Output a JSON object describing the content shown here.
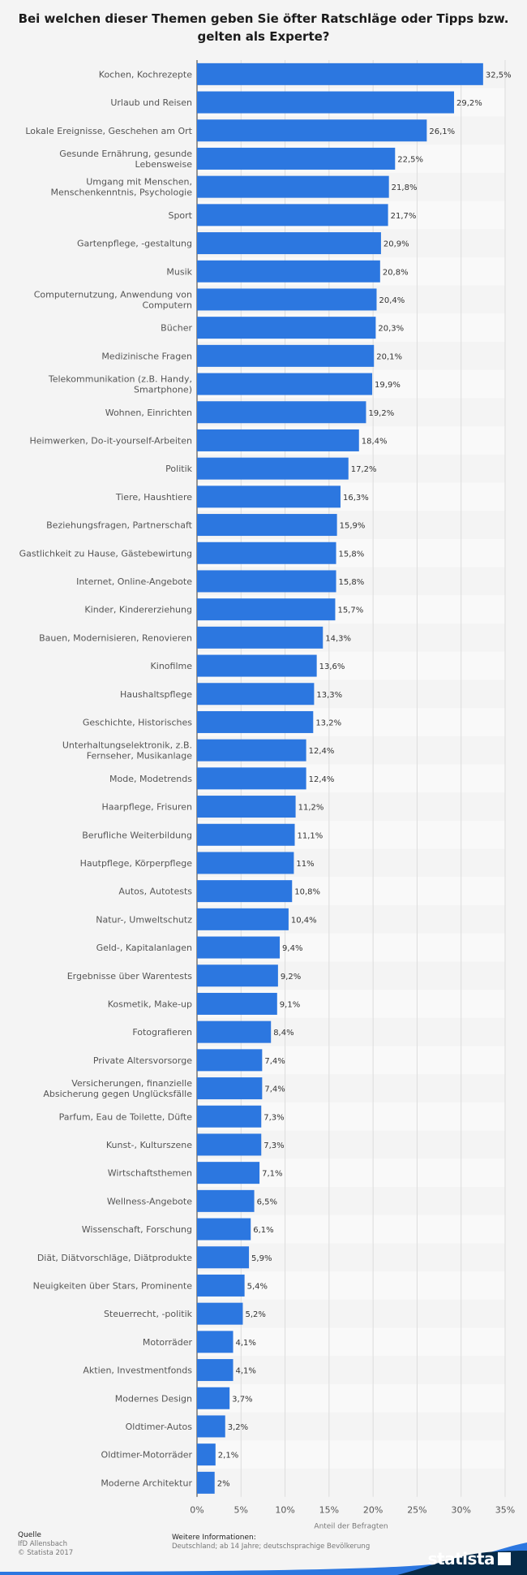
{
  "title": "Bei welchen dieser Themen geben Sie öfter Ratschläge oder Tipps bzw. gelten als Experte?",
  "footer": {
    "source_heading": "Quelle",
    "source_lines": [
      "IfD Allensbach",
      "© Statista 2017"
    ],
    "info_heading": "Weitere Informationen:",
    "info_text": "Deutschland; ab 14 Jahre; deutschsprachige Bevölkerung"
  },
  "brand": "statista",
  "colors": {
    "bar": "#2c77e0",
    "background": "#f4f4f4",
    "stripe": "#f9f9f9",
    "brand_dark": "#062a48",
    "brand_accent": "#2c77e0"
  },
  "chart_data": {
    "type": "bar",
    "orientation": "horizontal",
    "xlabel": "Anteil der Befragten",
    "ylabel": "",
    "xlim": [
      0,
      35
    ],
    "x_ticks": [
      "0%",
      "5%",
      "10%",
      "15%",
      "20%",
      "25%",
      "30%",
      "35%"
    ],
    "x_tick_values": [
      0,
      5,
      10,
      15,
      20,
      25,
      30,
      35
    ],
    "grid": true,
    "categories": [
      "Kochen, Kochrezepte",
      "Urlaub und Reisen",
      "Lokale Ereignisse, Geschehen am Ort",
      "Gesunde Ernährung, gesunde Lebensweise",
      "Umgang mit Menschen, Menschenkenntnis, Psychologie",
      "Sport",
      "Gartenpflege, -gestaltung",
      "Musik",
      "Computernutzung, Anwendung von Computern",
      "Bücher",
      "Medizinische Fragen",
      "Telekommunikation (z.B. Handy, Smartphone)",
      "Wohnen, Einrichten",
      "Heimwerken, Do-it-yourself-Arbeiten",
      "Politik",
      "Tiere, Haushtiere",
      "Beziehungsfragen, Partnerschaft",
      "Gastlichkeit zu Hause, Gästebewirtung",
      "Internet, Online-Angebote",
      "Kinder, Kindererziehung",
      "Bauen, Modernisieren, Renovieren",
      "Kinofilme",
      "Haushaltspflege",
      "Geschichte, Historisches",
      "Unterhaltungselektronik, z.B. Fernseher, Musikanlage",
      "Mode, Modetrends",
      "Haarpflege, Frisuren",
      "Berufliche Weiterbildung",
      "Hautpflege, Körperpflege",
      "Autos, Autotests",
      "Natur-, Umweltschutz",
      "Geld-, Kapitalanlagen",
      "Ergebnisse über Warentests",
      "Kosmetik, Make-up",
      "Fotografieren",
      "Private Altersvorsorge",
      "Versicherungen, finanzielle Absicherung gegen Unglücksfälle",
      "Parfum, Eau de Toilette, Düfte",
      "Kunst-, Kulturszene",
      "Wirtschaftsthemen",
      "Wellness-Angebote",
      "Wissenschaft, Forschung",
      "Diät, Diätvorschläge, Diätprodukte",
      "Neuigkeiten über Stars, Prominente",
      "Steuerrecht, -politik",
      "Motorräder",
      "Aktien, Investmentfonds",
      "Modernes Design",
      "Oldtimer-Autos",
      "Oldtimer-Motorräder",
      "Moderne Architektur"
    ],
    "category_lines": [
      [
        "Kochen, Kochrezepte"
      ],
      [
        "Urlaub und Reisen"
      ],
      [
        "Lokale Ereignisse, Geschehen am Ort"
      ],
      [
        "Gesunde Ernährung, gesunde",
        "Lebensweise"
      ],
      [
        "Umgang mit Menschen,",
        "Menschenkenntnis, Psychologie"
      ],
      [
        "Sport"
      ],
      [
        "Gartenpflege, -gestaltung"
      ],
      [
        "Musik"
      ],
      [
        "Computernutzung, Anwendung von",
        "Computern"
      ],
      [
        "Bücher"
      ],
      [
        "Medizinische Fragen"
      ],
      [
        "Telekommunikation (z.B. Handy,",
        "Smartphone)"
      ],
      [
        "Wohnen, Einrichten"
      ],
      [
        "Heimwerken, Do-it-yourself-Arbeiten"
      ],
      [
        "Politik"
      ],
      [
        "Tiere, Haushtiere"
      ],
      [
        "Beziehungsfragen, Partnerschaft"
      ],
      [
        "Gastlichkeit zu Hause, Gästebewirtung"
      ],
      [
        "Internet, Online-Angebote"
      ],
      [
        "Kinder, Kindererziehung"
      ],
      [
        "Bauen, Modernisieren, Renovieren"
      ],
      [
        "Kinofilme"
      ],
      [
        "Haushaltspflege"
      ],
      [
        "Geschichte, Historisches"
      ],
      [
        "Unterhaltungselektronik, z.B.",
        "Fernseher, Musikanlage"
      ],
      [
        "Mode, Modetrends"
      ],
      [
        "Haarpflege, Frisuren"
      ],
      [
        "Berufliche Weiterbildung"
      ],
      [
        "Hautpflege, Körperpflege"
      ],
      [
        "Autos, Autotests"
      ],
      [
        "Natur-, Umweltschutz"
      ],
      [
        "Geld-, Kapitalanlagen"
      ],
      [
        "Ergebnisse über Warentests"
      ],
      [
        "Kosmetik, Make-up"
      ],
      [
        "Fotografieren"
      ],
      [
        "Private Altersvorsorge"
      ],
      [
        "Versicherungen, finanzielle",
        "Absicherung gegen Unglücksfälle"
      ],
      [
        "Parfum, Eau de Toilette, Düfte"
      ],
      [
        "Kunst-, Kulturszene"
      ],
      [
        "Wirtschaftsthemen"
      ],
      [
        "Wellness-Angebote"
      ],
      [
        "Wissenschaft, Forschung"
      ],
      [
        "Diät, Diätvorschläge, Diätprodukte"
      ],
      [
        "Neuigkeiten über Stars, Prominente"
      ],
      [
        "Steuerrecht, -politik"
      ],
      [
        "Motorräder"
      ],
      [
        "Aktien, Investmentfonds"
      ],
      [
        "Modernes Design"
      ],
      [
        "Oldtimer-Autos"
      ],
      [
        "Oldtimer-Motorräder"
      ],
      [
        "Moderne Architektur"
      ]
    ],
    "values": [
      32.5,
      29.2,
      26.1,
      22.5,
      21.8,
      21.7,
      20.9,
      20.8,
      20.4,
      20.3,
      20.1,
      19.9,
      19.2,
      18.4,
      17.2,
      16.3,
      15.9,
      15.8,
      15.8,
      15.7,
      14.3,
      13.6,
      13.3,
      13.2,
      12.4,
      12.4,
      11.2,
      11.1,
      11,
      10.8,
      10.4,
      9.4,
      9.2,
      9.1,
      8.4,
      7.4,
      7.4,
      7.3,
      7.3,
      7.1,
      6.5,
      6.1,
      5.9,
      5.4,
      5.2,
      4.1,
      4.1,
      3.7,
      3.2,
      2.1,
      2
    ],
    "value_labels": [
      "32,5%",
      "29,2%",
      "26,1%",
      "22,5%",
      "21,8%",
      "21,7%",
      "20,9%",
      "20,8%",
      "20,4%",
      "20,3%",
      "20,1%",
      "19,9%",
      "19,2%",
      "18,4%",
      "17,2%",
      "16,3%",
      "15,9%",
      "15,8%",
      "15,8%",
      "15,7%",
      "14,3%",
      "13,6%",
      "13,3%",
      "13,2%",
      "12,4%",
      "12,4%",
      "11,2%",
      "11,1%",
      "11%",
      "10,8%",
      "10,4%",
      "9,4%",
      "9,2%",
      "9,1%",
      "8,4%",
      "7,4%",
      "7,4%",
      "7,3%",
      "7,3%",
      "7,1%",
      "6,5%",
      "6,1%",
      "5,9%",
      "5,4%",
      "5,2%",
      "4,1%",
      "4,1%",
      "3,7%",
      "3,2%",
      "2,1%",
      "2%"
    ]
  }
}
